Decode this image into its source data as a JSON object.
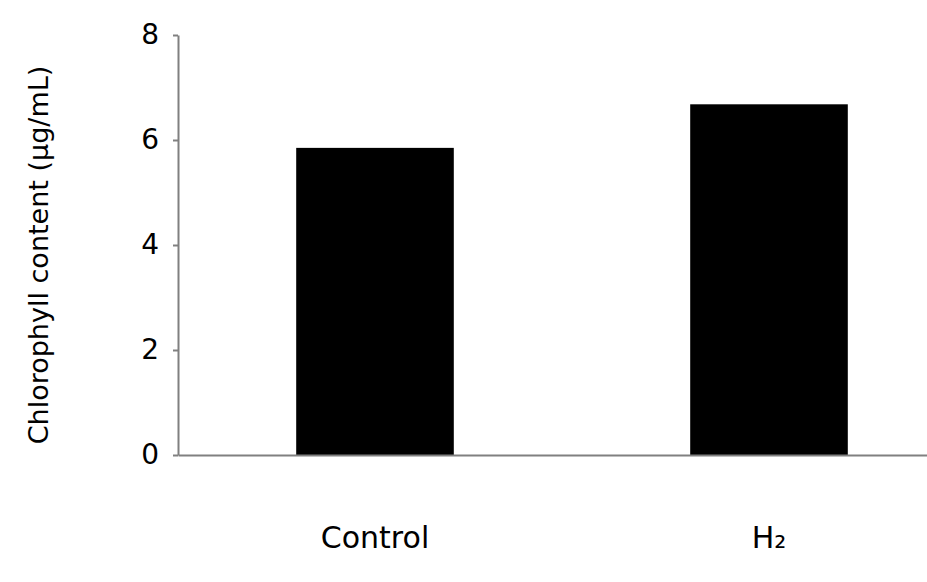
{
  "chart_data": {
    "type": "bar",
    "y_label": "Chlorophyll content (µg/mL)",
    "categories": [
      "Control",
      "H₂"
    ],
    "values": [
      5.85,
      6.68
    ],
    "color": "#000000",
    "ylim": [
      0,
      8
    ],
    "yticks": [
      0,
      2,
      4,
      6,
      8
    ]
  }
}
